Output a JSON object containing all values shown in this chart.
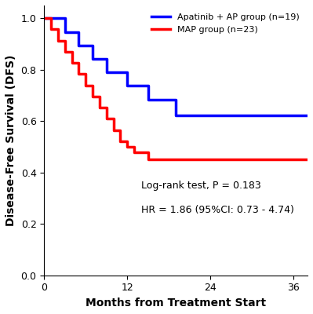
{
  "blue_times": [
    0,
    3,
    5,
    7,
    9,
    12,
    15,
    19,
    38
  ],
  "blue_surv": [
    1.0,
    0.947,
    0.895,
    0.842,
    0.789,
    0.737,
    0.684,
    0.621,
    0.621
  ],
  "red_times": [
    0,
    1,
    2,
    3,
    4,
    5,
    6,
    7,
    8,
    9,
    10,
    11,
    12,
    13,
    15,
    17,
    38
  ],
  "red_surv": [
    1.0,
    0.957,
    0.913,
    0.87,
    0.826,
    0.783,
    0.739,
    0.696,
    0.652,
    0.609,
    0.565,
    0.522,
    0.5,
    0.478,
    0.452,
    0.452,
    0.452
  ],
  "blue_color": "#0000FF",
  "red_color": "#FF0000",
  "blue_label": "Apatinib + AP group (n=19)",
  "red_label": "MAP group (n=23)",
  "xlabel": "Months from Treatment Start",
  "ylabel": "Disease-Free Survival (DFS)",
  "xlim": [
    0,
    38
  ],
  "ylim": [
    0.0,
    1.05
  ],
  "xticks": [
    0,
    12,
    24,
    36
  ],
  "yticks": [
    0.0,
    0.2,
    0.4,
    0.6,
    0.8,
    1.0
  ],
  "annotation_line1": "Log-rank test, P = 0.183",
  "annotation_line2": "HR = 1.86 (95%CI: 0.73 - 4.74)",
  "linewidth": 2.5,
  "figsize": [
    3.99,
    4.0
  ],
  "dpi": 100
}
